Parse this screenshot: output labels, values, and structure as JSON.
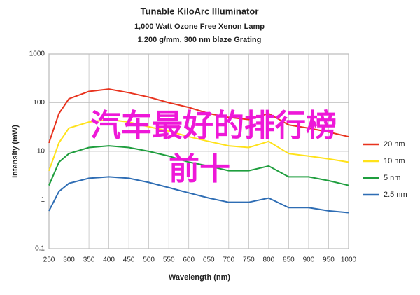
{
  "chart_data": {
    "type": "line",
    "title": "Tunable KiloArc Illuminator",
    "subtitle": [
      "1,000 Watt Ozone Free Xenon Lamp",
      "1,200 g/mm, 300 nm blaze Grating"
    ],
    "x_label": "Wavelength (nm)",
    "y_label": "Intensity (mW)",
    "x": [
      250,
      275,
      300,
      350,
      400,
      450,
      500,
      550,
      600,
      650,
      700,
      750,
      800,
      850,
      900,
      950,
      1000
    ],
    "series": [
      {
        "name": "20 nm",
        "color": "#e8331e",
        "values": [
          15,
          60,
          120,
          170,
          190,
          160,
          130,
          100,
          80,
          60,
          50,
          45,
          60,
          35,
          30,
          25,
          20
        ]
      },
      {
        "name": "10 nm",
        "color": "#ffe21a",
        "values": [
          4,
          15,
          30,
          40,
          45,
          40,
          32,
          26,
          20,
          16,
          13,
          12,
          16,
          9,
          8,
          7,
          6
        ]
      },
      {
        "name": "5 nm",
        "color": "#1f9e3e",
        "values": [
          2,
          6,
          9,
          12,
          13,
          12,
          10,
          8,
          6,
          5,
          4,
          4,
          5,
          3,
          3,
          2.5,
          2
        ]
      },
      {
        "name": "2.5 nm",
        "color": "#2e6db4",
        "values": [
          0.6,
          1.5,
          2.2,
          2.8,
          3,
          2.8,
          2.3,
          1.8,
          1.4,
          1.1,
          0.9,
          0.9,
          1.1,
          0.7,
          0.7,
          0.6,
          0.55
        ]
      }
    ],
    "xlim": [
      250,
      1000
    ],
    "xticks": [
      250,
      300,
      350,
      400,
      450,
      500,
      550,
      600,
      650,
      700,
      750,
      800,
      850,
      900,
      950,
      1000
    ],
    "ylim": [
      0.1,
      1000
    ],
    "yticks": [
      0.1,
      1,
      10,
      100,
      1000
    ],
    "yscale": "log",
    "grid": true,
    "legend": "right"
  },
  "overlay_text": [
    "汽车最好的排行榜",
    "前十"
  ]
}
